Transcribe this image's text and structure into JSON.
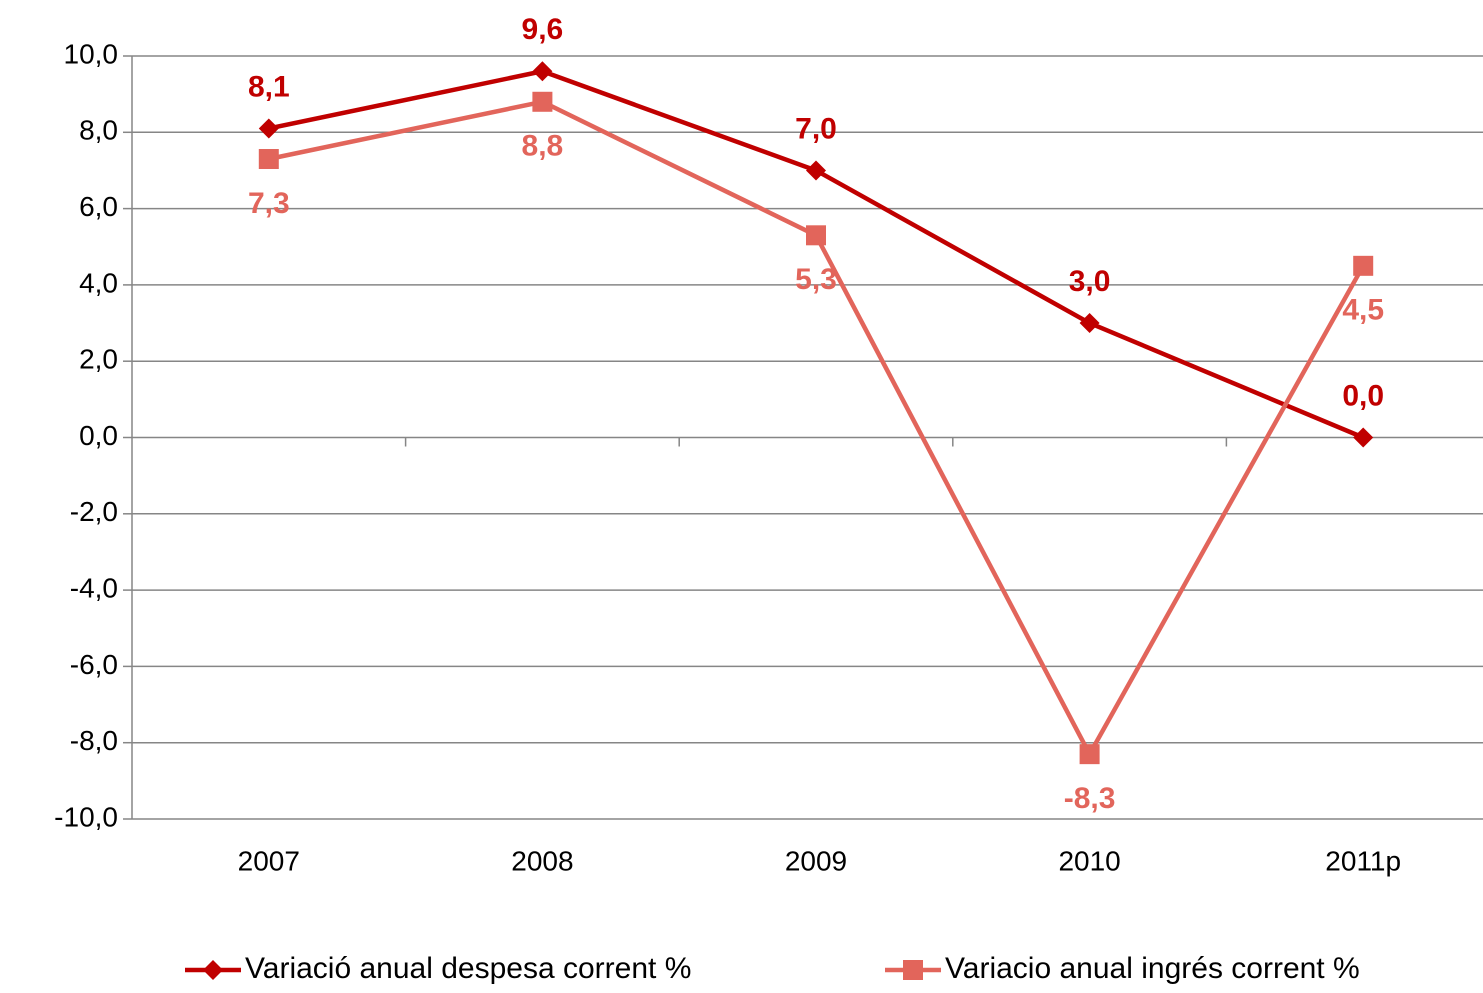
{
  "chart_data": {
    "type": "line",
    "categories": [
      "2007",
      "2008",
      "2009",
      "2010",
      "2011p"
    ],
    "series": [
      {
        "name": "Variació anual despesa corrent %",
        "color": "#c00000",
        "marker": "diamond",
        "values": [
          8.1,
          9.6,
          7.0,
          3.0,
          0.0
        ],
        "value_labels": [
          "8,1",
          "9,6",
          "7,0",
          "3,0",
          "0,0"
        ]
      },
      {
        "name": "Variacio anual ingrés corrent %",
        "color": "#e2655b",
        "marker": "square",
        "values": [
          7.3,
          8.8,
          5.3,
          -8.3,
          4.5
        ],
        "value_labels": [
          "7,3",
          "8,8",
          "5,3",
          "-8,3",
          "4,5"
        ]
      }
    ],
    "ylim": [
      -10,
      10
    ],
    "yticks": [
      {
        "value": -10,
        "label": "-10,0"
      },
      {
        "value": -8,
        "label": "-8,0"
      },
      {
        "value": -6,
        "label": "-6,0"
      },
      {
        "value": -4,
        "label": "-4,0"
      },
      {
        "value": -2,
        "label": "-2,0"
      },
      {
        "value": 0,
        "label": "0,0"
      },
      {
        "value": 2,
        "label": "2,0"
      },
      {
        "value": 4,
        "label": "4,0"
      },
      {
        "value": 6,
        "label": "6,0"
      },
      {
        "value": 8,
        "label": "8,0"
      },
      {
        "value": 10,
        "label": "10,0"
      }
    ],
    "grid": true,
    "legend": "bottom"
  }
}
